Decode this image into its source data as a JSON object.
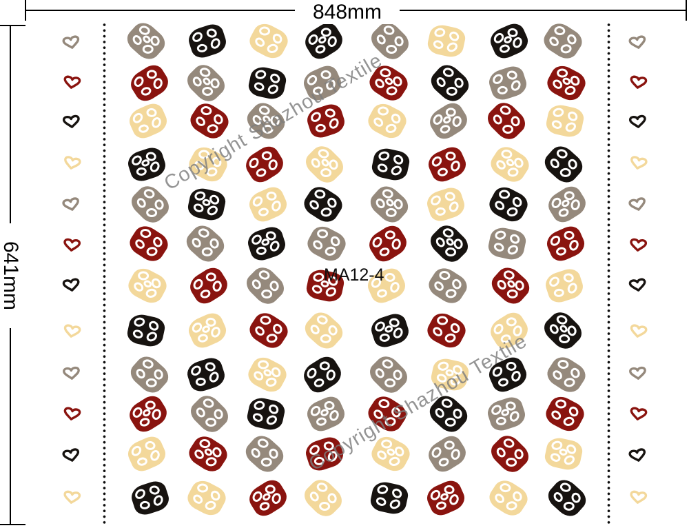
{
  "dimensions": {
    "width_label": "848mm",
    "height_label": "641mm"
  },
  "product_code": "MA12-4",
  "watermark": {
    "text": "Copyright Shazhou Textile"
  },
  "colors": {
    "beige": "#F3D89B",
    "darkred": "#8A140F",
    "black": "#171310",
    "gray": "#95897C",
    "dimension_line": "#000000",
    "watermark_gray": "#7d7d7d",
    "background": "#ffffff"
  },
  "pattern": {
    "columns": 8,
    "rows": 12,
    "motif_style": "rounded-diamond-with-white-rings",
    "grid": [
      [
        "gray",
        "black",
        "beige",
        "black",
        "gray",
        "beige",
        "black",
        "gray"
      ],
      [
        "darkred",
        "gray",
        "black",
        "gray",
        "darkred",
        "black",
        "gray",
        "darkred"
      ],
      [
        "beige",
        "darkred",
        "gray",
        "darkred",
        "beige",
        "gray",
        "darkred",
        "beige"
      ],
      [
        "black",
        "beige",
        "darkred",
        "beige",
        "black",
        "darkred",
        "beige",
        "black"
      ],
      [
        "gray",
        "black",
        "beige",
        "black",
        "gray",
        "beige",
        "black",
        "gray"
      ],
      [
        "darkred",
        "gray",
        "black",
        "gray",
        "darkred",
        "black",
        "gray",
        "darkred"
      ],
      [
        "beige",
        "darkred",
        "gray",
        "darkred",
        "beige",
        "gray",
        "darkred",
        "beige"
      ],
      [
        "black",
        "beige",
        "darkred",
        "beige",
        "black",
        "darkred",
        "beige",
        "black"
      ],
      [
        "gray",
        "black",
        "beige",
        "black",
        "gray",
        "beige",
        "black",
        "gray"
      ],
      [
        "darkred",
        "gray",
        "black",
        "gray",
        "darkred",
        "black",
        "gray",
        "darkred"
      ],
      [
        "beige",
        "darkred",
        "gray",
        "darkred",
        "beige",
        "gray",
        "darkred",
        "beige"
      ],
      [
        "black",
        "beige",
        "darkred",
        "beige",
        "black",
        "darkred",
        "beige",
        "black"
      ]
    ],
    "left_margin_motifs": [
      "gray",
      "darkred",
      "black",
      "beige",
      "gray",
      "darkred",
      "black",
      "beige",
      "gray",
      "darkred",
      "black",
      "beige"
    ],
    "right_margin_motifs": [
      "gray",
      "darkred",
      "black",
      "beige",
      "gray",
      "darkred",
      "black",
      "beige",
      "gray",
      "darkred",
      "black",
      "beige"
    ]
  }
}
